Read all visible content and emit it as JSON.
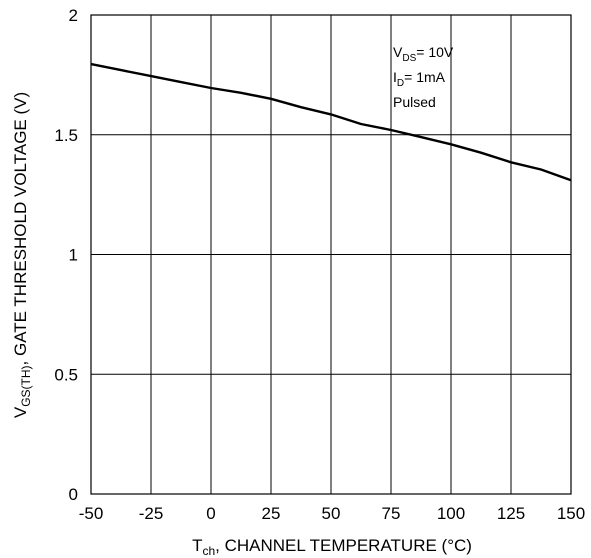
{
  "chart_data": {
    "type": "line",
    "xlabel": {
      "main": "T",
      "sub": "ch",
      "rest": ", CHANNEL TEMPERATURE (°C)"
    },
    "ylabel": {
      "main": "V",
      "sub": "GS(TH)",
      "rest": ", GATE THRESHOLD VOLTAGE (V)"
    },
    "xlim": [
      -50,
      150
    ],
    "ylim": [
      0,
      2
    ],
    "x_ticks": [
      -50,
      -25,
      0,
      25,
      50,
      75,
      100,
      125,
      150
    ],
    "y_ticks": [
      0,
      0.5,
      1,
      1.5,
      2
    ],
    "y_tick_labels": [
      "0",
      "0.5",
      "1",
      "1.5",
      "2"
    ],
    "grid": true,
    "annotations": [
      {
        "main": "V",
        "sub": "DS",
        "rest": "= 10V"
      },
      {
        "main": "I",
        "sub": "D",
        "rest": "= 1mA"
      },
      {
        "main": "Pulsed",
        "sub": "",
        "rest": ""
      }
    ],
    "series": [
      {
        "x": [
          -50,
          -37.5,
          -25,
          -12.5,
          0,
          12.5,
          25,
          37.5,
          50,
          62.5,
          75,
          87.5,
          100,
          112.5,
          125,
          137.5,
          150
        ],
        "y": [
          1.795,
          1.77,
          1.745,
          1.72,
          1.695,
          1.675,
          1.65,
          1.615,
          1.585,
          1.545,
          1.52,
          1.49,
          1.46,
          1.425,
          1.385,
          1.355,
          1.31
        ]
      }
    ]
  }
}
